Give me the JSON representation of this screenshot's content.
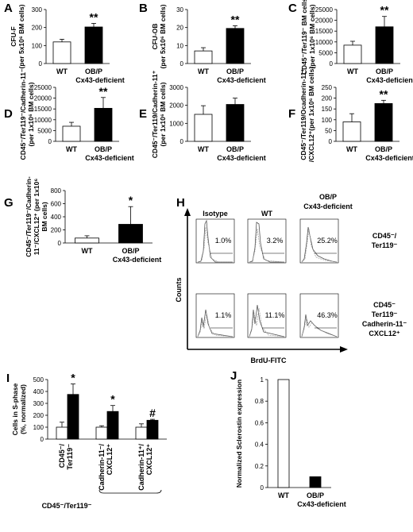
{
  "chart_data": [
    {
      "id": "A",
      "panel_label": "A",
      "type": "bar",
      "categories": [
        "WT",
        "OB/P Cx43-deficient"
      ],
      "values": [
        120,
        203
      ],
      "errors": [
        15,
        20
      ],
      "ylabel": [
        "CFU-F",
        "(per 5x10⁶ BM cells)"
      ],
      "ylim": [
        0,
        300
      ],
      "yticks": [
        0,
        100,
        200,
        300
      ],
      "fills": [
        "#ffffff",
        "#000000"
      ],
      "significance": [
        "",
        "**"
      ]
    },
    {
      "id": "B",
      "panel_label": "B",
      "type": "bar",
      "categories": [
        "WT",
        "OB/P Cx43-deficient"
      ],
      "values": [
        7,
        19.5
      ],
      "errors": [
        1.8,
        1.5
      ],
      "ylabel": [
        "CFU-OB",
        "(per 5x10⁶ BM cells)"
      ],
      "ylim": [
        0,
        30
      ],
      "yticks": [
        0,
        10,
        20,
        30
      ],
      "fills": [
        "#ffffff",
        "#000000"
      ],
      "significance": [
        "",
        "**"
      ]
    },
    {
      "id": "C",
      "panel_label": "C",
      "type": "bar",
      "categories": [
        "WT",
        "OB/P Cx43-deficient"
      ],
      "values": [
        8500,
        17000
      ],
      "errors": [
        1800,
        4800
      ],
      "ylabel": [
        "CD45⁻/Ter119⁻ BM cells",
        "(per 1x10⁶ BM cells)"
      ],
      "ylim": [
        0,
        25000
      ],
      "yticks": [
        0,
        5000,
        10000,
        15000,
        20000,
        25000
      ],
      "fills": [
        "#ffffff",
        "#000000"
      ],
      "significance": [
        "",
        "**"
      ]
    },
    {
      "id": "D",
      "panel_label": "D",
      "type": "bar",
      "categories": [
        "WT",
        "OB/P Cx43-deficient"
      ],
      "values": [
        7000,
        15300
      ],
      "errors": [
        1800,
        5000
      ],
      "ylabel": [
        "CD45⁻/Ter119⁻/Cadherin-11⁻",
        "(per 1x10⁶ BM cells)"
      ],
      "ylim": [
        0,
        25000
      ],
      "yticks": [
        0,
        5000,
        10000,
        15000,
        20000,
        25000
      ],
      "fills": [
        "#ffffff",
        "#000000"
      ],
      "significance": [
        "",
        "**"
      ]
    },
    {
      "id": "E",
      "panel_label": "E",
      "type": "bar",
      "categories": [
        "WT",
        "OB/P Cx43-deficient"
      ],
      "values": [
        1500,
        2050
      ],
      "errors": [
        480,
        350
      ],
      "ylabel": [
        "CD45⁻/Ter119/Cadherin-11⁺",
        "(per 1x10⁶ BM cells)"
      ],
      "ylim": [
        0,
        3000
      ],
      "yticks": [
        0,
        1000,
        2000,
        3000
      ],
      "fills": [
        "#ffffff",
        "#000000"
      ],
      "significance": [
        "",
        ""
      ]
    },
    {
      "id": "F",
      "panel_label": "F",
      "type": "bar",
      "categories": [
        "WT",
        "OB/P Cx43-deficient"
      ],
      "values": [
        90,
        175
      ],
      "errors": [
        38,
        15
      ],
      "ylabel": [
        "CD45⁻/Ter119/Ocadherin-11⁺",
        "/CXCL12⁺(per 1x10⁶ BM cells)"
      ],
      "ylim": [
        0,
        250
      ],
      "yticks": [
        0,
        50,
        100,
        150,
        200,
        250
      ],
      "fills": [
        "#ffffff",
        "#000000"
      ],
      "significance": [
        "",
        "**"
      ]
    },
    {
      "id": "G",
      "panel_label": "G",
      "type": "bar",
      "categories": [
        "WT",
        "OB/P Cx43-deficient"
      ],
      "values": [
        75,
        285
      ],
      "errors": [
        35,
        270
      ],
      "ylabel": [
        "CD45⁻/Ter119⁻/Cadherin-",
        "11⁻/CXCL12⁺ (per 1x10⁶",
        "BM cells)"
      ],
      "ylim": [
        0,
        800
      ],
      "yticks": [
        0,
        200,
        400,
        600,
        800
      ],
      "fills": [
        "#ffffff",
        "#000000"
      ],
      "significance": [
        "",
        "*"
      ]
    },
    {
      "id": "I",
      "panel_label": "I",
      "type": "bar",
      "categories": [
        "CD45⁻/Ter119⁻",
        "Cadherin-11⁻/CXCL12⁺",
        "Cadherin-11⁺/CXCL12⁺"
      ],
      "group_label": "CD45⁻/Ter119⁻",
      "series": [
        {
          "values": [
            100,
            100,
            100
          ],
          "errors": [
            42,
            12,
            28
          ],
          "fill": "#ffffff"
        },
        {
          "values": [
            375,
            232,
            158
          ],
          "errors": [
            88,
            50,
            8
          ],
          "fill": "#000000"
        }
      ],
      "ylabel": [
        "Cells in S-phase",
        "(%, normalized)"
      ],
      "ylim": [
        0,
        500
      ],
      "yticks": [
        0,
        100,
        200,
        300,
        400,
        500
      ],
      "significance": [
        "*",
        "*",
        "#"
      ]
    },
    {
      "id": "J",
      "panel_label": "J",
      "type": "bar",
      "categories": [
        "WT",
        "OB/P Cx43-deficient"
      ],
      "values": [
        1.0,
        0.1
      ],
      "ylabel": [
        "Normalized Sclerostin expression"
      ],
      "ylim": [
        0,
        1
      ],
      "yticks": [
        0,
        0.2,
        0.4,
        0.6,
        0.8,
        1
      ],
      "fills": [
        "#ffffff",
        "#000000"
      ],
      "significance": [
        "",
        ""
      ]
    }
  ],
  "flow_panel": {
    "panel_label": "H",
    "columns": [
      "Isotype",
      "WT",
      "OB/P Cx43-deficient"
    ],
    "rows": [
      {
        "label": [
          "CD45⁻/",
          "Ter119⁻"
        ],
        "percentages": [
          "1.0%",
          "3.2%",
          "25.2%"
        ]
      },
      {
        "label": [
          "CD45⁻",
          "Ter119⁻",
          "Cadherin-11⁻",
          "CXCL12⁺"
        ],
        "percentages": [
          "1.1%",
          "11.1%",
          "46.3%"
        ]
      }
    ],
    "y_axis": "Counts",
    "x_axis": "BrdU-FITC"
  }
}
